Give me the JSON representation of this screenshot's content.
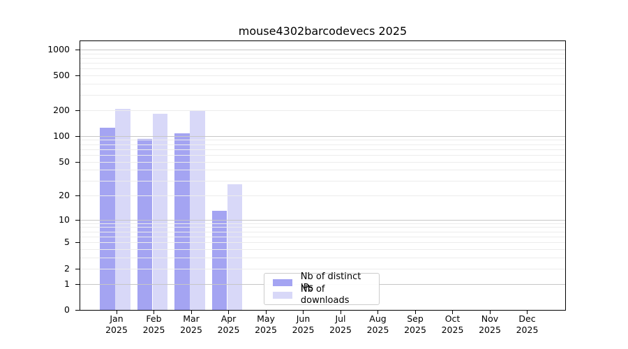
{
  "chart_data": {
    "type": "bar",
    "title": "mouse4302barcodevecs 2025",
    "year": "2025",
    "months": [
      "Jan",
      "Feb",
      "Mar",
      "Apr",
      "May",
      "Jun",
      "Jul",
      "Aug",
      "Sep",
      "Oct",
      "Nov",
      "Dec"
    ],
    "categories": [
      "Jan 2025",
      "Feb 2025",
      "Mar 2025",
      "Apr 2025",
      "May 2025",
      "Jun 2025",
      "Jul 2025",
      "Aug 2025",
      "Sep 2025",
      "Oct 2025",
      "Nov 2025",
      "Dec 2025"
    ],
    "series": [
      {
        "name": "Nb of distinct IPs",
        "color": "#a4a4f2",
        "values": [
          125,
          92,
          108,
          13,
          0,
          0,
          0,
          0,
          0,
          0,
          0,
          0
        ]
      },
      {
        "name": "Nb of downloads",
        "color": "#d8d8f8",
        "values": [
          205,
          180,
          198,
          27,
          0,
          0,
          0,
          0,
          0,
          0,
          0,
          0
        ]
      }
    ],
    "y_ticks": [
      0,
      1,
      2,
      5,
      10,
      20,
      50,
      100,
      200,
      500,
      1000
    ],
    "y_scale": "log1p",
    "ylim": [
      0,
      1150
    ],
    "grid": "horizontal; light minor lines at 2-9 per decade, darker lines at powers of 10",
    "legend_position": "inside, lower area left of center"
  },
  "colors": {
    "bar_distinct_ips": "#a4a4f2",
    "bar_downloads": "#d8d8f8",
    "grid_minor": "#ececec",
    "grid_major": "#c6c6c6",
    "axis": "#000000",
    "background": "#ffffff"
  }
}
